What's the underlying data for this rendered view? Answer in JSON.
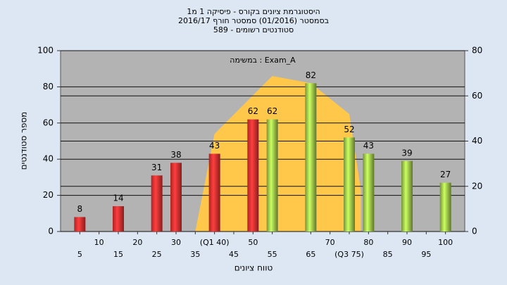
{
  "chart_data": {
    "type": "bar",
    "title": [
      "היסטוגרמת ציונים בקורס - פיסיקה 1 מ1",
      "בסמסטר  (01/2016)  סמסטר חורף 2016/17",
      "סטודנטים רשומים - 589"
    ],
    "x_label": "טווח ציונים",
    "y_label": "מספר סטודנטים",
    "x": [
      5,
      15,
      25,
      30,
      40,
      50,
      55,
      65,
      75,
      80,
      90,
      100
    ],
    "values": [
      8,
      14,
      31,
      38,
      43,
      62,
      62,
      82,
      52,
      43,
      39,
      27
    ],
    "colors": [
      "#e53030",
      "#e53030",
      "#e53030",
      "#e53030",
      "#e53030",
      "#e53030",
      "#9cc44a",
      "#9cc44a",
      "#9cc44a",
      "#9cc44a",
      "#9cc44a",
      "#9cc44a"
    ],
    "area": {
      "name": "במשימה : Exam_A",
      "color": "#ffc84a",
      "x": [
        35,
        40,
        55,
        65,
        75,
        78
      ],
      "values": [
        0,
        54,
        86,
        82,
        65,
        23
      ]
    },
    "xlim": [
      0,
      105
    ],
    "xticks": [
      5,
      10,
      15,
      20,
      25,
      30,
      35,
      {
        "value": 40,
        "label": "(Q1 40)"
      },
      45,
      50,
      55,
      65,
      70,
      {
        "value": 75,
        "label": "(Q3 75)"
      },
      80,
      85,
      90,
      95,
      100
    ],
    "ylim": [
      0,
      100
    ],
    "yticks": [
      0,
      20,
      40,
      60,
      80,
      100
    ],
    "y2lim": [
      0,
      80
    ],
    "y2ticks": [
      0,
      20,
      40,
      60,
      80
    ],
    "grid": true
  }
}
